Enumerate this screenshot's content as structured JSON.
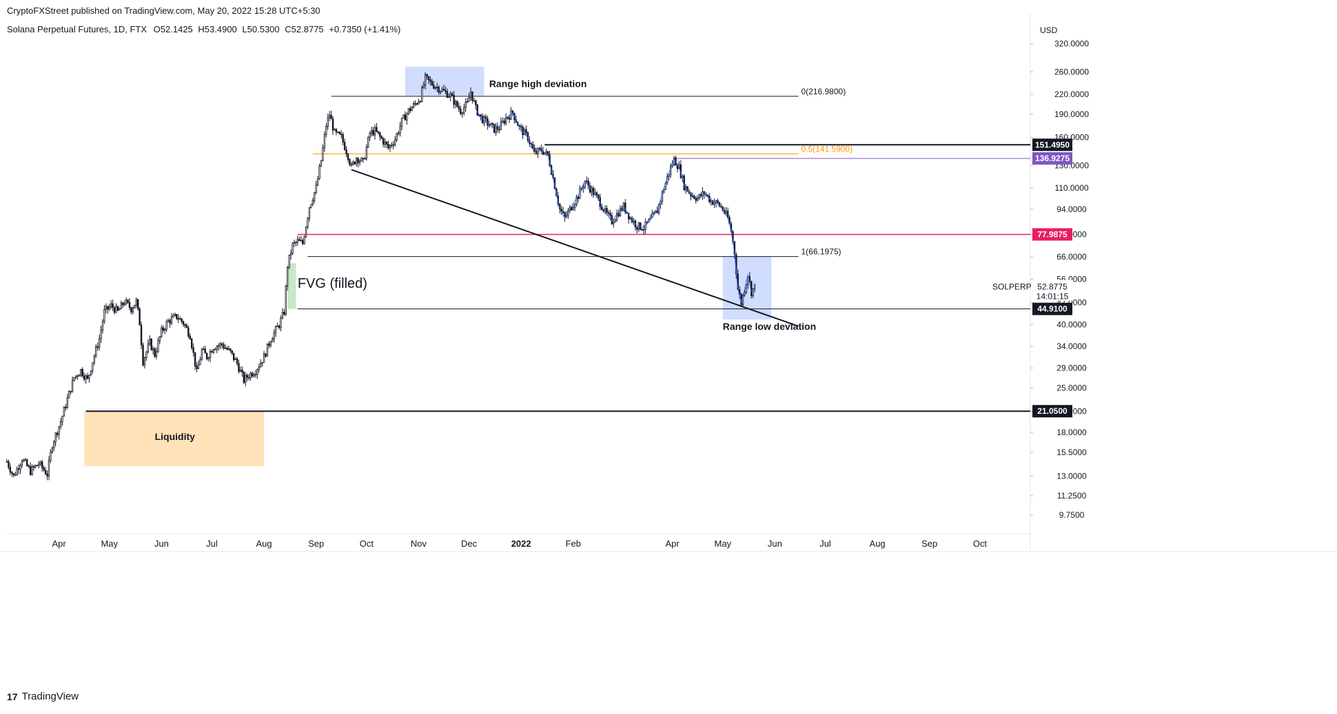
{
  "header": {
    "published": "CryptoFXStreet published on TradingView.com, May 20, 2022 15:28 UTC+5:30",
    "symbol_line": "Solana Perpetual Futures, 1D, FTX",
    "ohlc": {
      "o": "O52.1425",
      "h": "H53.4900",
      "l": "L50.5300",
      "c": "C52.8775",
      "chg": "+0.7350 (+1.41%)"
    }
  },
  "footer": {
    "brand": "TradingView",
    "logo": "17"
  },
  "colors": {
    "up": "#ffffff",
    "down": "#131722",
    "wick": "#131722",
    "blue_line": "#2962ff",
    "fib_orange": "#ff9800",
    "pink_line": "#e91e63",
    "purple_label": "#7e57c2",
    "blue_box": "rgba(41,98,255,0.22)",
    "orange_box": "rgba(255,152,0,0.28)",
    "green_box": "rgba(76,175,80,0.3)"
  },
  "chart_data": {
    "type": "candlestick",
    "symbol": "SOLPERP",
    "scale": "log",
    "currency": "USD",
    "x_start": "2021-03-01",
    "x_end": "2022-10-31",
    "ylim": [
      8.5,
      380
    ],
    "y_ticks": [
      "320.0000",
      "260.0000",
      "220.0000",
      "190.0000",
      "160.0000",
      "130.0000",
      "110.0000",
      "94.0000",
      "78.0000",
      "66.0000",
      "56.0000",
      "47.0000",
      "40.0000",
      "34.0000",
      "29.0000",
      "25.0000",
      "21.0000",
      "18.0000",
      "15.5000",
      "13.0000",
      "11.2500",
      "9.7500"
    ],
    "x_ticks": [
      {
        "label": "Apr",
        "date": "2021-04-01"
      },
      {
        "label": "May",
        "date": "2021-05-01"
      },
      {
        "label": "Jun",
        "date": "2021-06-01"
      },
      {
        "label": "Jul",
        "date": "2021-07-01"
      },
      {
        "label": "Aug",
        "date": "2021-08-01"
      },
      {
        "label": "Sep",
        "date": "2021-09-01"
      },
      {
        "label": "Oct",
        "date": "2021-10-01"
      },
      {
        "label": "Nov",
        "date": "2021-11-01"
      },
      {
        "label": "Dec",
        "date": "2021-12-01"
      },
      {
        "label": "2022",
        "date": "2022-01-01",
        "bold": true
      },
      {
        "label": "Feb",
        "date": "2022-02-01"
      },
      {
        "label": "Apr",
        "date": "2022-04-01"
      },
      {
        "label": "May",
        "date": "2022-05-01"
      },
      {
        "label": "Jun",
        "date": "2022-06-01"
      },
      {
        "label": "Jul",
        "date": "2022-07-01"
      },
      {
        "label": "Aug",
        "date": "2022-08-01"
      },
      {
        "label": "Sep",
        "date": "2022-09-01"
      },
      {
        "label": "Oct",
        "date": "2022-10-01"
      }
    ],
    "price_path": [
      [
        "2021-03-01",
        14.5
      ],
      [
        "2021-03-05",
        13.0
      ],
      [
        "2021-03-10",
        14.8
      ],
      [
        "2021-03-15",
        13.5
      ],
      [
        "2021-03-20",
        14.3
      ],
      [
        "2021-03-25",
        13.2
      ],
      [
        "2021-03-28",
        16.5
      ],
      [
        "2021-04-02",
        19.5
      ],
      [
        "2021-04-06",
        23.0
      ],
      [
        "2021-04-10",
        27.0
      ],
      [
        "2021-04-14",
        28.5
      ],
      [
        "2021-04-18",
        26.5
      ],
      [
        "2021-04-21",
        30.5
      ],
      [
        "2021-04-25",
        36.0
      ],
      [
        "2021-04-28",
        44.0
      ],
      [
        "2021-05-02",
        46.0
      ],
      [
        "2021-05-06",
        44.0
      ],
      [
        "2021-05-10",
        47.5
      ],
      [
        "2021-05-14",
        45.0
      ],
      [
        "2021-05-17",
        47.5
      ],
      [
        "2021-05-19",
        40.5
      ],
      [
        "2021-05-21",
        30.5
      ],
      [
        "2021-05-25",
        35.0
      ],
      [
        "2021-05-28",
        32.0
      ],
      [
        "2021-06-01",
        38.0
      ],
      [
        "2021-06-05",
        41.0
      ],
      [
        "2021-06-10",
        42.5
      ],
      [
        "2021-06-14",
        40.5
      ],
      [
        "2021-06-18",
        37.0
      ],
      [
        "2021-06-22",
        28.0
      ],
      [
        "2021-06-25",
        33.0
      ],
      [
        "2021-06-28",
        31.5
      ],
      [
        "2021-07-02",
        34.0
      ],
      [
        "2021-07-07",
        34.5
      ],
      [
        "2021-07-12",
        32.5
      ],
      [
        "2021-07-16",
        30.0
      ],
      [
        "2021-07-20",
        26.5
      ],
      [
        "2021-07-23",
        27.5
      ],
      [
        "2021-07-27",
        28.5
      ],
      [
        "2021-08-01",
        31.5
      ],
      [
        "2021-08-05",
        36.0
      ],
      [
        "2021-08-10",
        40.0
      ],
      [
        "2021-08-13",
        44.0
      ],
      [
        "2021-08-15",
        62.0
      ],
      [
        "2021-08-18",
        72.0
      ],
      [
        "2021-08-21",
        74.0
      ],
      [
        "2021-08-24",
        73.0
      ],
      [
        "2021-08-28",
        96.0
      ],
      [
        "2021-09-01",
        110.0
      ],
      [
        "2021-09-04",
        135.0
      ],
      [
        "2021-09-07",
        175.0
      ],
      [
        "2021-09-09",
        190.0
      ],
      [
        "2021-09-12",
        165.0
      ],
      [
        "2021-09-16",
        160.0
      ],
      [
        "2021-09-20",
        140.0
      ],
      [
        "2021-09-22",
        128.0
      ],
      [
        "2021-09-25",
        138.0
      ],
      [
        "2021-09-29",
        133.0
      ],
      [
        "2021-10-03",
        165.0
      ],
      [
        "2021-10-06",
        168.0
      ],
      [
        "2021-10-10",
        158.0
      ],
      [
        "2021-10-14",
        148.0
      ],
      [
        "2021-10-18",
        158.0
      ],
      [
        "2021-10-22",
        180.0
      ],
      [
        "2021-10-26",
        195.0
      ],
      [
        "2021-10-30",
        205.0
      ],
      [
        "2021-11-02",
        215.0
      ],
      [
        "2021-11-05",
        248.0
      ],
      [
        "2021-11-08",
        240.0
      ],
      [
        "2021-11-12",
        232.0
      ],
      [
        "2021-11-16",
        225.0
      ],
      [
        "2021-11-20",
        218.0
      ],
      [
        "2021-11-23",
        205.0
      ],
      [
        "2021-11-26",
        195.0
      ],
      [
        "2021-11-30",
        205.0
      ],
      [
        "2021-12-02",
        225.0
      ],
      [
        "2021-12-05",
        198.0
      ],
      [
        "2021-12-08",
        185.0
      ],
      [
        "2021-12-12",
        178.0
      ],
      [
        "2021-12-16",
        170.0
      ],
      [
        "2021-12-19",
        172.0
      ],
      [
        "2021-12-23",
        185.0
      ],
      [
        "2021-12-27",
        192.0
      ],
      [
        "2021-12-31",
        172.0
      ],
      [
        "2022-01-05",
        160.0
      ],
      [
        "2022-01-09",
        142.0
      ],
      [
        "2022-01-13",
        146.0
      ],
      [
        "2022-01-17",
        140.0
      ],
      [
        "2022-01-21",
        112.0
      ],
      [
        "2022-01-24",
        94.0
      ],
      [
        "2022-01-27",
        88.0
      ],
      [
        "2022-01-31",
        96.0
      ],
      [
        "2022-02-04",
        104.0
      ],
      [
        "2022-02-08",
        116.0
      ],
      [
        "2022-02-12",
        108.0
      ],
      [
        "2022-02-16",
        101.0
      ],
      [
        "2022-02-20",
        92.0
      ],
      [
        "2022-02-24",
        86.0
      ],
      [
        "2022-02-28",
        92.0
      ],
      [
        "2022-03-03",
        96.0
      ],
      [
        "2022-03-07",
        88.0
      ],
      [
        "2022-03-11",
        83.0
      ],
      [
        "2022-03-15",
        82.0
      ],
      [
        "2022-03-19",
        87.0
      ],
      [
        "2022-03-23",
        93.0
      ],
      [
        "2022-03-27",
        110.0
      ],
      [
        "2022-03-31",
        128.0
      ],
      [
        "2022-04-02",
        136.0
      ],
      [
        "2022-04-05",
        128.0
      ],
      [
        "2022-04-08",
        112.0
      ],
      [
        "2022-04-12",
        105.0
      ],
      [
        "2022-04-16",
        102.0
      ],
      [
        "2022-04-20",
        106.0
      ],
      [
        "2022-04-24",
        100.0
      ],
      [
        "2022-04-28",
        98.0
      ],
      [
        "2022-05-01",
        94.0
      ],
      [
        "2022-05-04",
        88.0
      ],
      [
        "2022-05-06",
        80.0
      ],
      [
        "2022-05-08",
        68.0
      ],
      [
        "2022-05-10",
        52.0
      ],
      [
        "2022-05-12",
        47.0
      ],
      [
        "2022-05-14",
        52.0
      ],
      [
        "2022-05-16",
        58.0
      ],
      [
        "2022-05-18",
        51.0
      ],
      [
        "2022-05-20",
        52.8775
      ]
    ],
    "levels": [
      {
        "name": "fib-0",
        "price": 216.98,
        "label": "0(216.9800)",
        "from": "2021-09-10",
        "to": "2022-06-15",
        "color": "#131722"
      },
      {
        "name": "fib-0.5",
        "price": 141.59,
        "label": "0.5(141.5900)",
        "from": "2021-08-30",
        "to": "2022-06-15",
        "color": "#ff9800"
      },
      {
        "name": "fib-1",
        "price": 66.1975,
        "label": "1(66.1975)",
        "from": "2021-08-27",
        "to": "2022-06-15",
        "color": "#131722"
      },
      {
        "name": "level-151",
        "price": 151.495,
        "from": "2022-01-15",
        "to": "2022-10-31",
        "color": "#131722",
        "width": 2
      },
      {
        "name": "level-136",
        "price": 136.9275,
        "from": "2022-04-02",
        "to": "2022-10-31",
        "color": "#7e57c2",
        "width": 1
      },
      {
        "name": "level-78",
        "price": 77.9875,
        "from": "2021-08-21",
        "to": "2022-10-31",
        "color": "#e91e63",
        "width": 1.5
      },
      {
        "name": "level-44",
        "price": 44.91,
        "from": "2021-08-21",
        "to": "2022-10-31",
        "color": "#131722",
        "width": 1
      },
      {
        "name": "level-21",
        "price": 21.05,
        "from": "2021-04-17",
        "to": "2022-10-31",
        "color": "#131722",
        "width": 2
      }
    ],
    "price_labels": [
      {
        "value": "151.4950",
        "price": 151.495,
        "bg": "#131722",
        "fg": "#ffffff"
      },
      {
        "value": "136.9275",
        "price": 136.9275,
        "bg": "#7e57c2",
        "fg": "#ffffff"
      },
      {
        "value": "77.9875",
        "price": 77.9875,
        "bg": "#e91e63",
        "fg": "#ffffff"
      },
      {
        "value": "44.9100",
        "price": 44.91,
        "bg": "#131722",
        "fg": "#ffffff"
      },
      {
        "value": "21.0500",
        "price": 21.05,
        "bg": "#131722",
        "fg": "#ffffff"
      }
    ],
    "last_price": {
      "symbol": "SOLPERP",
      "value": "52.8775",
      "countdown": "14:01:15",
      "price": 52.8775
    },
    "trendline": {
      "from": [
        "2021-09-22",
        126.0
      ],
      "to": [
        "2022-06-15",
        39.5
      ]
    },
    "boxes": [
      {
        "name": "range-high-box",
        "from": "2021-10-24",
        "to": "2021-12-10",
        "top": 270,
        "bottom": 218,
        "color": "rgba(41,98,255,0.22)"
      },
      {
        "name": "range-low-box",
        "from": "2022-05-01",
        "to": "2022-05-30",
        "top": 66.2,
        "bottom": 41.5,
        "color": "rgba(41,98,255,0.22)"
      },
      {
        "name": "liquidity-box",
        "from": "2021-04-16",
        "to": "2021-08-01",
        "top": 21.05,
        "bottom": 14.0,
        "color": "rgba(255,152,0,0.28)"
      },
      {
        "name": "fvg-box",
        "from": "2021-08-15",
        "to": "2021-08-20",
        "top": 63.0,
        "bottom": 44.91,
        "color": "rgba(76,175,80,0.3)"
      }
    ],
    "annotations": [
      {
        "name": "range-high-label",
        "text": "Range high deviation",
        "date": "2021-12-13",
        "price": 232,
        "size": 14,
        "weight": "bold"
      },
      {
        "name": "range-low-label",
        "text": "Range low deviation",
        "date": "2022-05-01",
        "price": 38.5,
        "size": 14,
        "weight": "bold"
      },
      {
        "name": "liquidity-label",
        "text": "Liquidity",
        "date": "2021-05-28",
        "price": 17.0,
        "size": 14,
        "weight": "bold"
      },
      {
        "name": "fvg-label",
        "text": "FVG (filled)",
        "date": "2021-08-21",
        "price": 52.5,
        "size": 20,
        "weight": "normal"
      }
    ]
  }
}
